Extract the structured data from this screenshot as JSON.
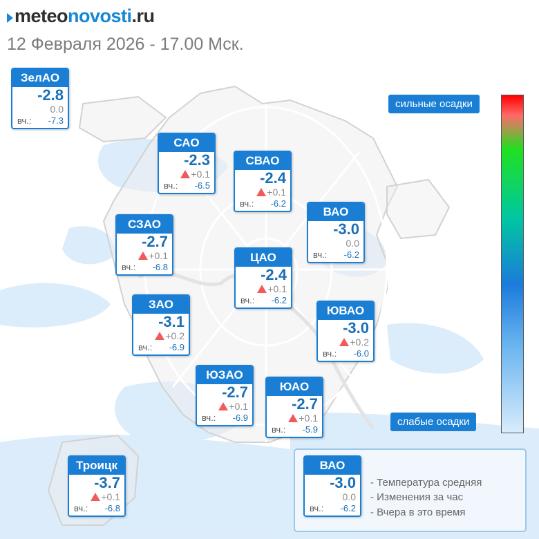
{
  "header": {
    "brand_part1": "meteo",
    "brand_part2": "novosti",
    "brand_part3": ".ru",
    "subtitle": "12 Февраля 2026 - 17.00 Мск."
  },
  "yesterday_label": "вч.:",
  "districts": [
    {
      "name": "ЗелАО",
      "temp": "-2.8",
      "change": "0.0",
      "change_dir": "none",
      "yesterday": "-7.3"
    },
    {
      "name": "САО",
      "temp": "-2.3",
      "change": "+0.1",
      "change_dir": "up",
      "yesterday": "-6.5"
    },
    {
      "name": "СВАО",
      "temp": "-2.4",
      "change": "+0.1",
      "change_dir": "up",
      "yesterday": "-6.2"
    },
    {
      "name": "ВАО",
      "temp": "-3.0",
      "change": "0.0",
      "change_dir": "none",
      "yesterday": "-6.2"
    },
    {
      "name": "СЗАО",
      "temp": "-2.7",
      "change": "+0.1",
      "change_dir": "up",
      "yesterday": "-6.8"
    },
    {
      "name": "ЦАО",
      "temp": "-2.4",
      "change": "+0.1",
      "change_dir": "up",
      "yesterday": "-6.2"
    },
    {
      "name": "ЗАО",
      "temp": "-3.1",
      "change": "+0.2",
      "change_dir": "up",
      "yesterday": "-6.9"
    },
    {
      "name": "ЮВАО",
      "temp": "-3.0",
      "change": "+0.2",
      "change_dir": "up",
      "yesterday": "-6.0"
    },
    {
      "name": "ЮЗАО",
      "temp": "-2.7",
      "change": "+0.1",
      "change_dir": "up",
      "yesterday": "-6.9"
    },
    {
      "name": "ЮАО",
      "temp": "-2.7",
      "change": "+0.1",
      "change_dir": "up",
      "yesterday": "-5.9"
    },
    {
      "name": "Троицк",
      "temp": "-3.7",
      "change": "+0.1",
      "change_dir": "up",
      "yesterday": "-6.8"
    }
  ],
  "precip_scale": {
    "strong_label": "сильные осадки",
    "weak_label": "слабые осадки"
  },
  "legend": {
    "sample": {
      "name": "ВАО",
      "temp": "-3.0",
      "change": "0.0",
      "change_dir": "none",
      "yesterday": "-6.2"
    },
    "line_avg": "- Температура средняя",
    "line_change": "- Изменения за час",
    "line_yesterday": "- Вчера в это время"
  },
  "colors": {
    "accent": "#1a7fd4",
    "temp_text": "#1b6fb5",
    "change_up": "#f05a5a",
    "precip_light": "#d6e9fa"
  }
}
